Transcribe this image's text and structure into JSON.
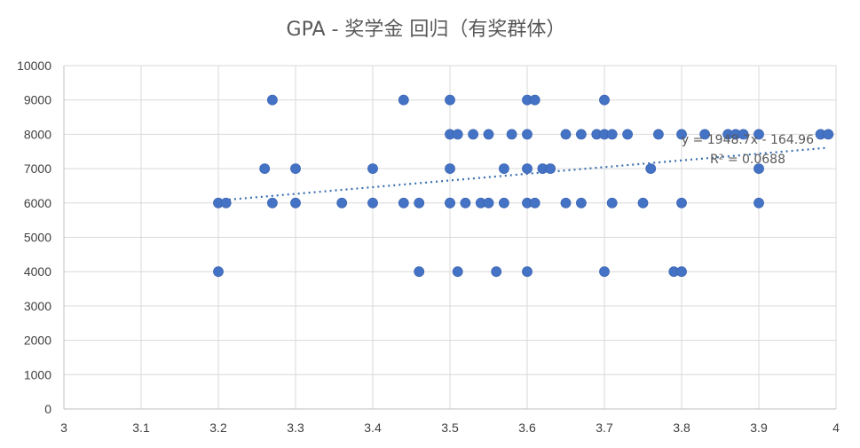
{
  "chart_data": {
    "type": "scatter",
    "title": "GPA - 奖学金 回归（有奖群体）",
    "xlabel": "",
    "ylabel": "",
    "xlim": [
      3,
      4
    ],
    "ylim": [
      0,
      10000
    ],
    "x_ticks": [
      "3",
      "3.1",
      "3.2",
      "3.3",
      "3.4",
      "3.5",
      "3.6",
      "3.7",
      "3.8",
      "3.9",
      "4"
    ],
    "y_ticks": [
      "0",
      "1000",
      "2000",
      "3000",
      "4000",
      "5000",
      "6000",
      "7000",
      "8000",
      "9000",
      "10000"
    ],
    "grid": "vertical and horizontal major gridlines",
    "legend": "none",
    "point_color": "#4472c4",
    "trendline": {
      "type": "linear",
      "equation_label": "y = 1948.7x - 164.96",
      "r2_label": "R² = 0.0688",
      "slope": 1948.7,
      "intercept": -164.96,
      "x_range": [
        3.2,
        3.99
      ],
      "color": "#3a6fb0",
      "style": "dotted"
    },
    "points": [
      {
        "x": 3.2,
        "y": 6000
      },
      {
        "x": 3.21,
        "y": 6000
      },
      {
        "x": 3.2,
        "y": 4000
      },
      {
        "x": 3.26,
        "y": 7000
      },
      {
        "x": 3.27,
        "y": 9000
      },
      {
        "x": 3.27,
        "y": 6000
      },
      {
        "x": 3.3,
        "y": 7000
      },
      {
        "x": 3.3,
        "y": 6000
      },
      {
        "x": 3.36,
        "y": 6000
      },
      {
        "x": 3.4,
        "y": 7000
      },
      {
        "x": 3.4,
        "y": 6000
      },
      {
        "x": 3.44,
        "y": 9000
      },
      {
        "x": 3.44,
        "y": 6000
      },
      {
        "x": 3.46,
        "y": 6000
      },
      {
        "x": 3.46,
        "y": 4000
      },
      {
        "x": 3.5,
        "y": 9000
      },
      {
        "x": 3.5,
        "y": 8000
      },
      {
        "x": 3.51,
        "y": 8000
      },
      {
        "x": 3.5,
        "y": 7000
      },
      {
        "x": 3.5,
        "y": 6000
      },
      {
        "x": 3.5,
        "y": 6000
      },
      {
        "x": 3.51,
        "y": 4000
      },
      {
        "x": 3.52,
        "y": 6000
      },
      {
        "x": 3.53,
        "y": 8000
      },
      {
        "x": 3.54,
        "y": 6000
      },
      {
        "x": 3.55,
        "y": 8000
      },
      {
        "x": 3.55,
        "y": 6000
      },
      {
        "x": 3.56,
        "y": 4000
      },
      {
        "x": 3.57,
        "y": 7000
      },
      {
        "x": 3.57,
        "y": 6000
      },
      {
        "x": 3.58,
        "y": 8000
      },
      {
        "x": 3.6,
        "y": 9000
      },
      {
        "x": 3.61,
        "y": 9000
      },
      {
        "x": 3.6,
        "y": 8000
      },
      {
        "x": 3.6,
        "y": 7000
      },
      {
        "x": 3.6,
        "y": 6000
      },
      {
        "x": 3.61,
        "y": 6000
      },
      {
        "x": 3.6,
        "y": 4000
      },
      {
        "x": 3.62,
        "y": 7000
      },
      {
        "x": 3.63,
        "y": 7000
      },
      {
        "x": 3.65,
        "y": 8000
      },
      {
        "x": 3.65,
        "y": 6000
      },
      {
        "x": 3.67,
        "y": 8000
      },
      {
        "x": 3.67,
        "y": 6000
      },
      {
        "x": 3.69,
        "y": 8000
      },
      {
        "x": 3.7,
        "y": 9000
      },
      {
        "x": 3.7,
        "y": 8000
      },
      {
        "x": 3.71,
        "y": 8000
      },
      {
        "x": 3.7,
        "y": 4000
      },
      {
        "x": 3.71,
        "y": 6000
      },
      {
        "x": 3.73,
        "y": 8000
      },
      {
        "x": 3.75,
        "y": 6000
      },
      {
        "x": 3.76,
        "y": 7000
      },
      {
        "x": 3.77,
        "y": 8000
      },
      {
        "x": 3.79,
        "y": 4000
      },
      {
        "x": 3.8,
        "y": 8000
      },
      {
        "x": 3.8,
        "y": 6000
      },
      {
        "x": 3.8,
        "y": 4000
      },
      {
        "x": 3.83,
        "y": 8000
      },
      {
        "x": 3.86,
        "y": 8000
      },
      {
        "x": 3.87,
        "y": 8000
      },
      {
        "x": 3.88,
        "y": 8000
      },
      {
        "x": 3.9,
        "y": 8000
      },
      {
        "x": 3.9,
        "y": 7000
      },
      {
        "x": 3.9,
        "y": 6000
      },
      {
        "x": 3.98,
        "y": 8000
      },
      {
        "x": 3.99,
        "y": 8000
      }
    ]
  }
}
